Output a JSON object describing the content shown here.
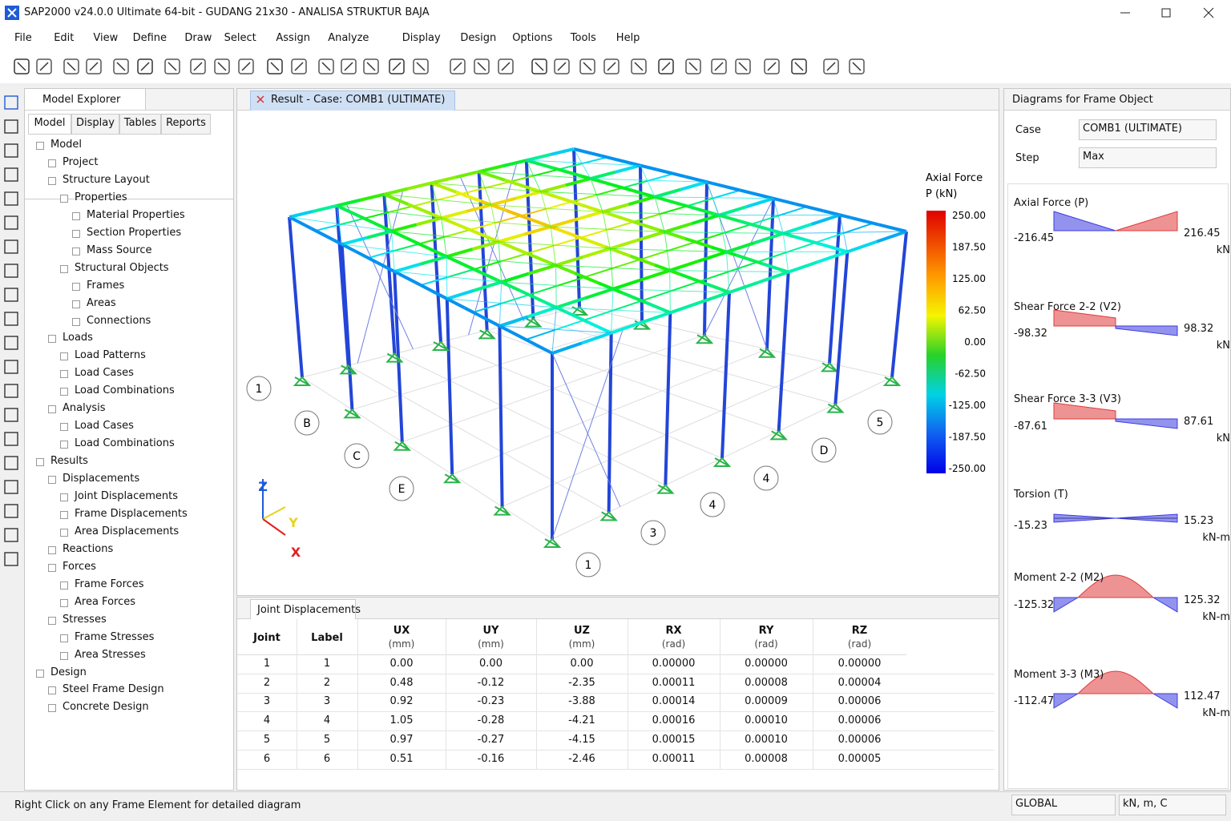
{
  "window": {
    "title": "SAP2000 v24.0.0 Ultimate 64-bit - GUDANG 21x30 - ANALISA STRUKTUR BAJA"
  },
  "menu": [
    "File",
    "Edit",
    "View",
    "Define",
    "Draw",
    "Select",
    "Assign",
    "Analyze",
    "Display",
    "Design",
    "Options",
    "Tools",
    "Help"
  ],
  "explorer": {
    "title": "Model Explorer",
    "tabs": [
      "Model",
      "Display",
      "Tables",
      "Reports"
    ],
    "tree": [
      {
        "label": "Model",
        "children": [
          {
            "label": "Project"
          },
          {
            "label": "Structure Layout",
            "children": [
              {
                "label": "Properties",
                "children": [
                  {
                    "label": "Material Properties"
                  },
                  {
                    "label": "Section Properties"
                  },
                  {
                    "label": "Mass Source"
                  }
                ]
              },
              {
                "label": "Structural Objects",
                "children": [
                  {
                    "label": "Frames"
                  },
                  {
                    "label": "Areas"
                  },
                  {
                    "label": "Connections"
                  }
                ]
              }
            ]
          },
          {
            "label": "Loads",
            "children": [
              {
                "label": "Load Patterns"
              },
              {
                "label": "Load Cases"
              },
              {
                "label": "Load Combinations"
              }
            ]
          },
          {
            "label": "Analysis",
            "children": [
              {
                "label": "Load Cases"
              },
              {
                "label": "Load Combinations"
              }
            ]
          }
        ]
      },
      {
        "label": "Results",
        "children": [
          {
            "label": "Displacements",
            "children": [
              {
                "label": "Joint Displacements"
              },
              {
                "label": "Frame Displacements"
              },
              {
                "label": "Area Displacements"
              }
            ]
          },
          {
            "label": "Reactions"
          },
          {
            "label": "Forces",
            "children": [
              {
                "label": "Frame Forces"
              },
              {
                "label": "Area Forces"
              }
            ]
          },
          {
            "label": "Stresses",
            "children": [
              {
                "label": "Frame Stresses"
              },
              {
                "label": "Area Stresses"
              }
            ]
          }
        ]
      },
      {
        "label": "Design",
        "children": [
          {
            "label": "Steel Frame Design"
          },
          {
            "label": "Concrete Design"
          }
        ]
      }
    ]
  },
  "viewport": {
    "tab": "Result - Case: COMB1 (ULTIMATE)",
    "legend": {
      "title": "Axial Force",
      "unit": "P (kN)",
      "ticks": [
        "250.00",
        "187.50",
        "125.00",
        "62.50",
        "0.00",
        "-62.50",
        "-125.00",
        "-187.50",
        "-250.00"
      ]
    },
    "grid_labels": [
      "1",
      "B",
      "C",
      "E",
      "5",
      "D",
      "4",
      "4",
      "3",
      "1"
    ],
    "axes": [
      "Z",
      "Y",
      "X"
    ]
  },
  "table": {
    "title": "Joint Displacements",
    "headers": [
      {
        "name": "Joint"
      },
      {
        "name": "Label"
      },
      {
        "name": "UX",
        "unit": "(mm)"
      },
      {
        "name": "UY",
        "unit": "(mm)"
      },
      {
        "name": "UZ",
        "unit": "(mm)"
      },
      {
        "name": "RX",
        "unit": "(rad)"
      },
      {
        "name": "RY",
        "unit": "(rad)"
      },
      {
        "name": "RZ",
        "unit": "(rad)"
      }
    ],
    "rows": [
      [
        "1",
        "1",
        "0.00",
        "0.00",
        "0.00",
        "0.00000",
        "0.00000",
        "0.00000"
      ],
      [
        "2",
        "2",
        "0.48",
        "-0.12",
        "-2.35",
        "0.00011",
        "0.00008",
        "0.00004"
      ],
      [
        "3",
        "3",
        "0.92",
        "-0.23",
        "-3.88",
        "0.00014",
        "0.00009",
        "0.00006"
      ],
      [
        "4",
        "4",
        "1.05",
        "-0.28",
        "-4.21",
        "0.00016",
        "0.00010",
        "0.00006"
      ],
      [
        "5",
        "5",
        "0.97",
        "-0.27",
        "-4.15",
        "0.00015",
        "0.00010",
        "0.00006"
      ],
      [
        "6",
        "6",
        "0.51",
        "-0.16",
        "-2.46",
        "0.00011",
        "0.00008",
        "0.00005"
      ]
    ]
  },
  "diagrams": {
    "title": "Diagrams for Frame Object",
    "case_label": "Case",
    "case": "COMB1 (ULTIMATE)",
    "step_label": "Step",
    "step": "Max",
    "items": [
      {
        "title": "Axial Force (P)",
        "left": "-216.45",
        "right": "216.45",
        "unit": "kN"
      },
      {
        "title": "Shear Force 2-2 (V2)",
        "left": "-98.32",
        "right": "98.32",
        "unit": "kN"
      },
      {
        "title": "Shear Force 3-3 (V3)",
        "left": "-87.61",
        "right": "87.61",
        "unit": "kN"
      },
      {
        "title": "Torsion (T)",
        "left": "-15.23",
        "right": "15.23",
        "unit": "kN-m"
      },
      {
        "title": "Moment 2-2 (M2)",
        "left": "-125.32",
        "right": "125.32",
        "unit": "kN-m"
      },
      {
        "title": "Moment 3-3 (M3)",
        "left": "-112.47",
        "right": "112.47",
        "unit": "kN-m"
      }
    ]
  },
  "status": {
    "message": "Right Click on any Frame Element for detailed diagram",
    "coord": "GLOBAL",
    "units": "kN, m, C"
  }
}
